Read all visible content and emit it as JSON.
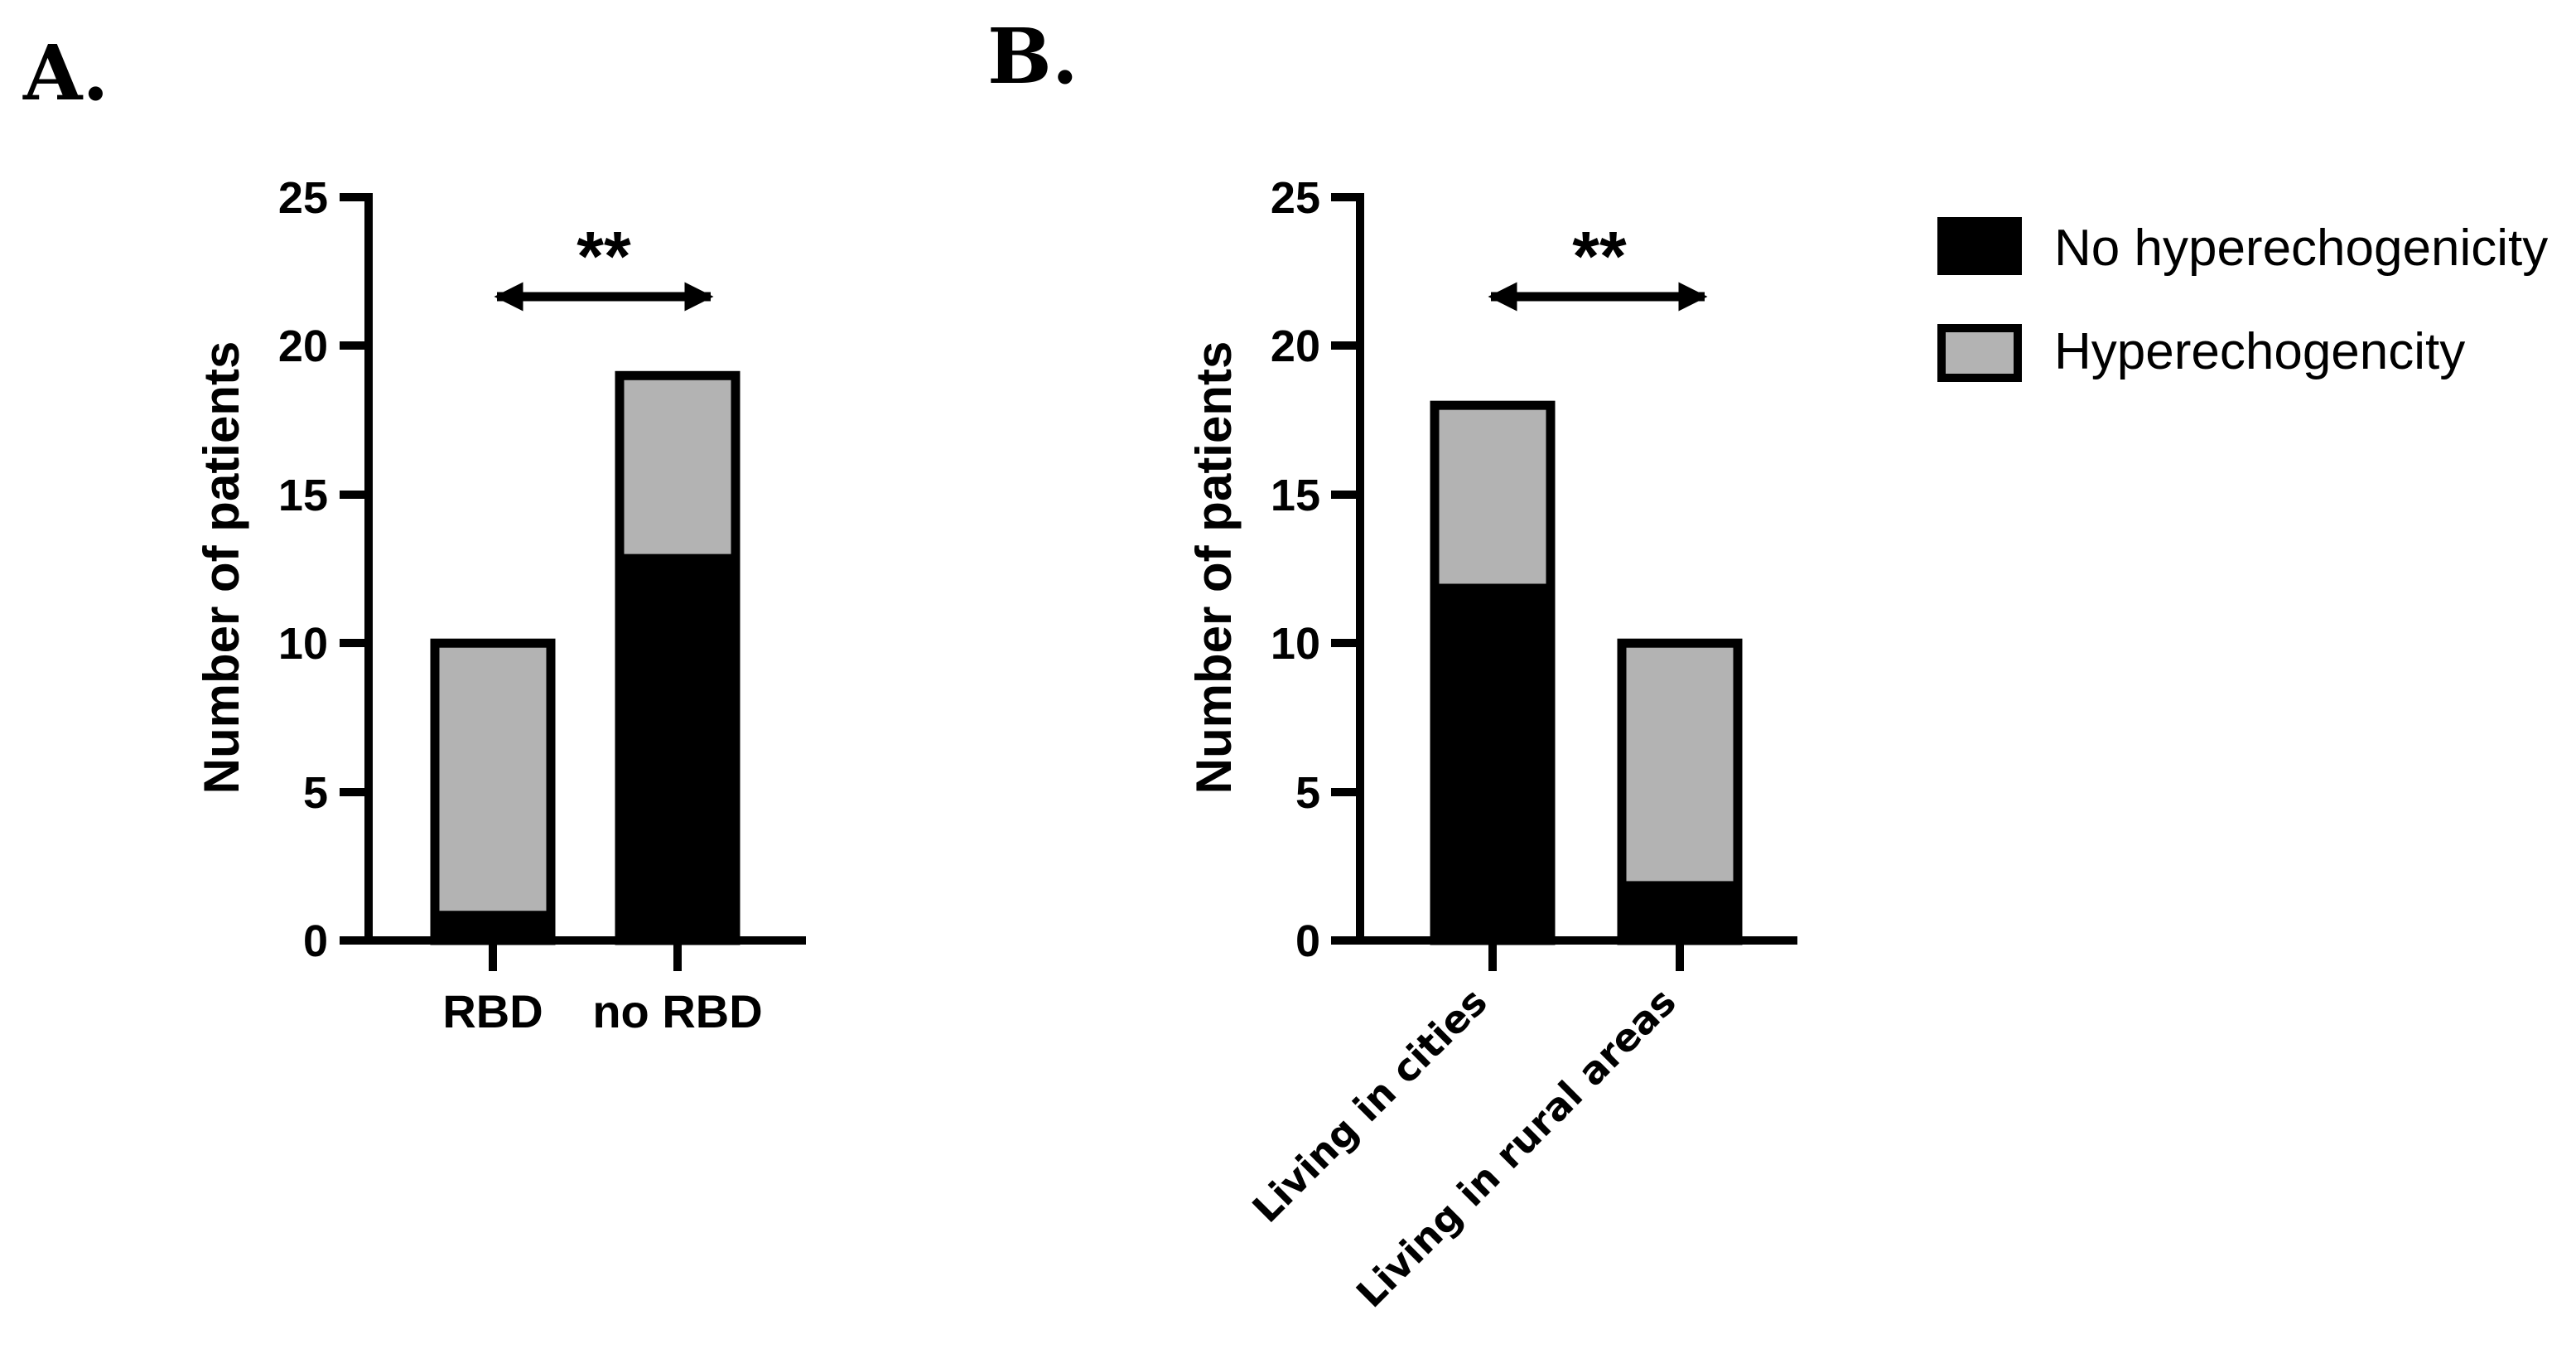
{
  "chart_data": [
    {
      "type": "bar",
      "stacked": true,
      "panel_label": "A.",
      "categories": [
        "RBD",
        "no RBD"
      ],
      "series": [
        {
          "name": "No hyperechogenicity",
          "color": "#000000",
          "values": [
            1,
            13
          ]
        },
        {
          "name": "Hyperechogencity",
          "color": "#b3b3b3",
          "values": [
            9,
            6
          ]
        }
      ],
      "ylabel": "Number of patients",
      "ylim": [
        0,
        25
      ],
      "yticks": [
        "0",
        "5",
        "10",
        "15",
        "20",
        "25"
      ],
      "significance": "**"
    },
    {
      "type": "bar",
      "stacked": true,
      "panel_label": "B.",
      "categories": [
        "Living in cities",
        "Living in rural areas"
      ],
      "series": [
        {
          "name": "No hyperechogenicity",
          "color": "#000000",
          "values": [
            12,
            2
          ]
        },
        {
          "name": "Hyperechogencity",
          "color": "#b3b3b3",
          "values": [
            6,
            8
          ]
        }
      ],
      "ylabel": "Number of patients",
      "ylim": [
        0,
        25
      ],
      "yticks": [
        "0",
        "5",
        "10",
        "15",
        "20",
        "25"
      ],
      "significance": "**"
    }
  ],
  "legend": {
    "entries": [
      {
        "label": "No hyperechogenicity",
        "color": "#000000"
      },
      {
        "label": "Hyperechogencity",
        "color": "#b3b3b3"
      }
    ]
  }
}
